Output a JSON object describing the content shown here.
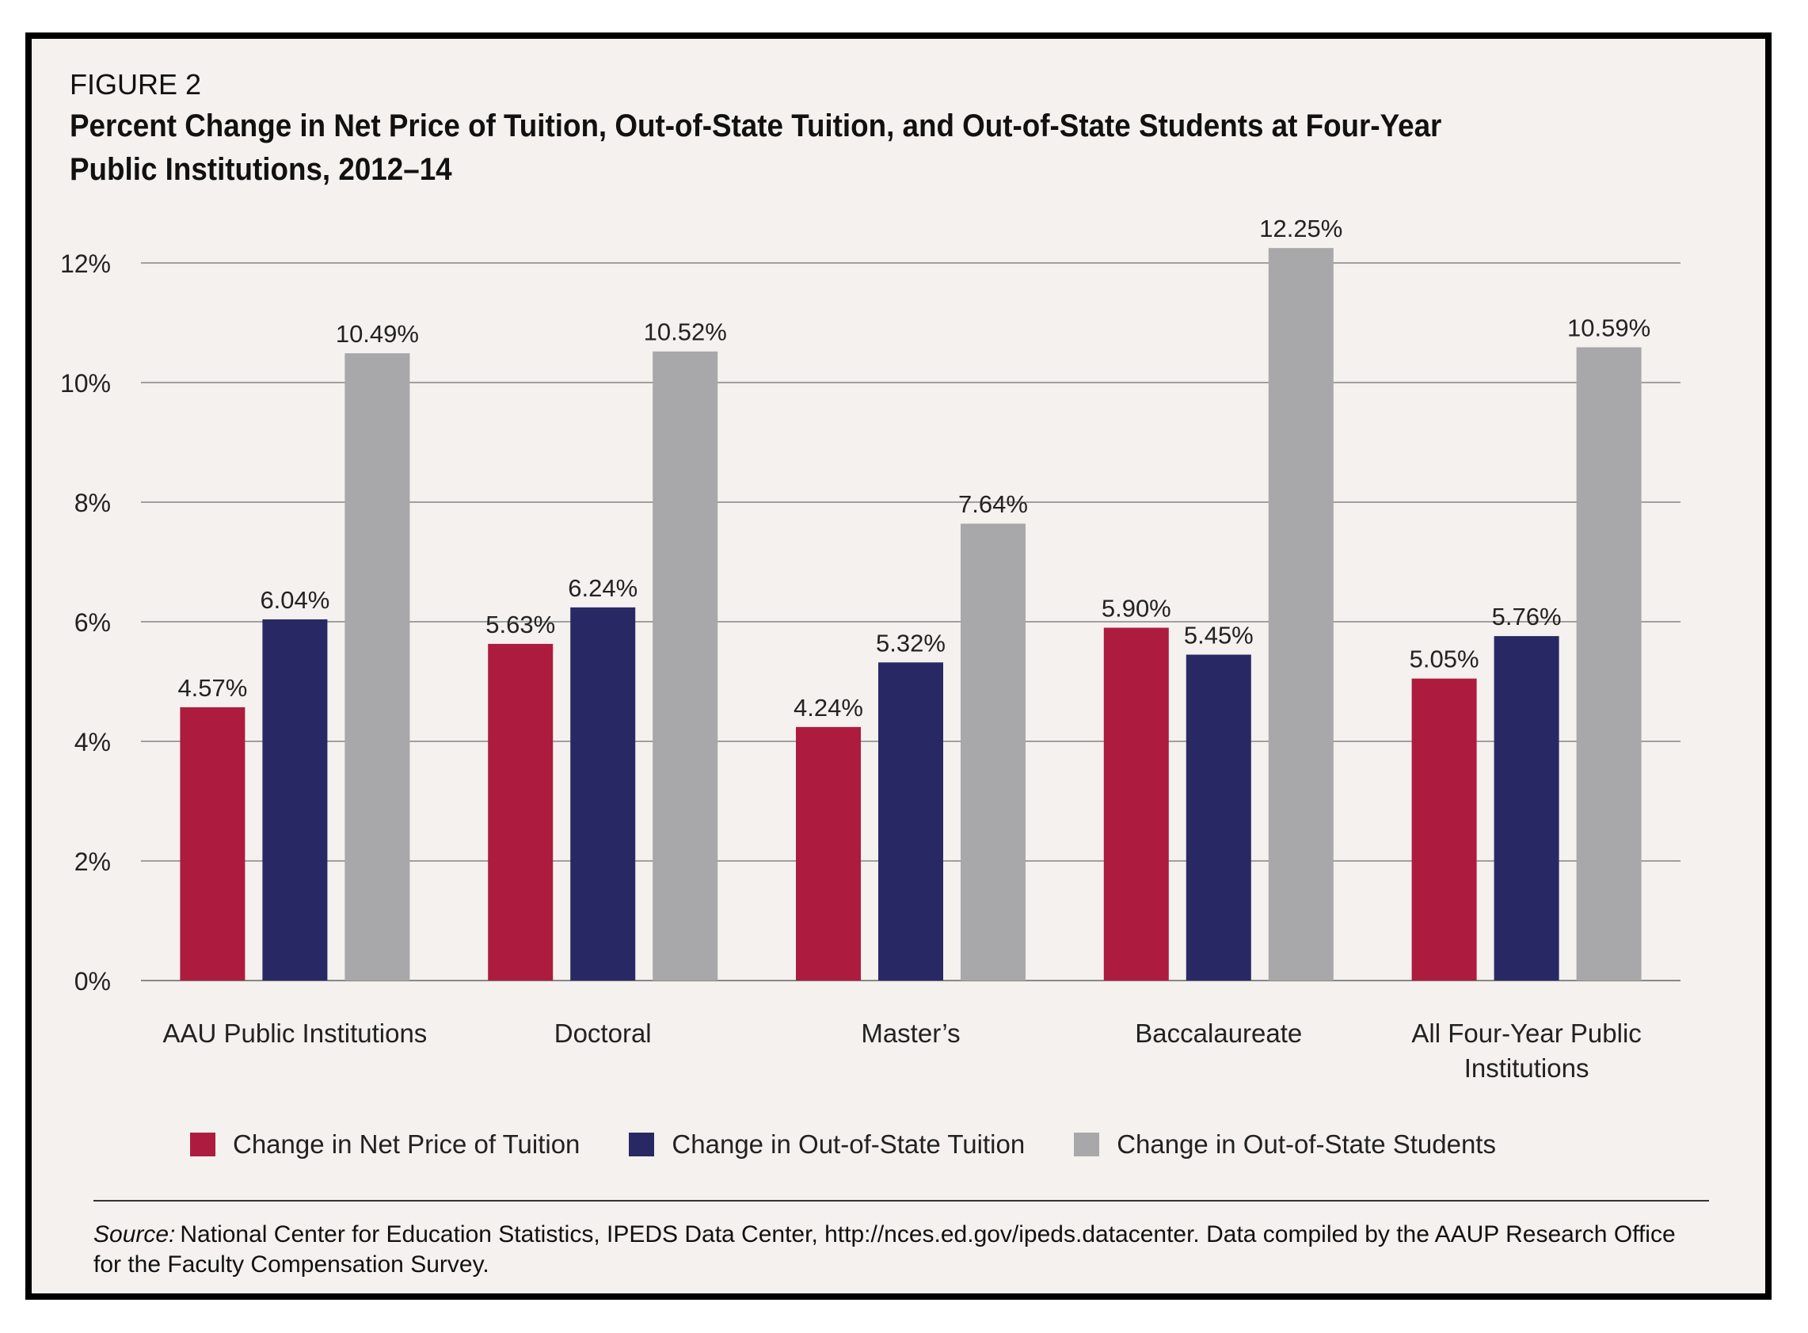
{
  "figure_label": "FIGURE 2",
  "title": "Percent Change in Net Price of Tuition, Out-of-State Tuition, and Out-of-State Students at Four-Year Public Institutions, 2012–14",
  "source": {
    "lead": "Source:",
    "text": "National Center for Education Statistics, IPEDS Data Center, http://nces.ed.gov/ipeds.datacenter. Data compiled by the AAUP Research Office for the Faculty Compensation Survey."
  },
  "chart_data": {
    "type": "bar",
    "title": "Percent Change in Net Price of Tuition, Out-of-State Tuition, and Out-of-State Students at Four-Year Public Institutions, 2012–14",
    "xlabel": "",
    "ylabel": "",
    "ylim": [
      0,
      12
    ],
    "yticks": [
      0,
      2,
      4,
      6,
      8,
      10,
      12
    ],
    "ytick_labels": [
      "0%",
      "2%",
      "4%",
      "6%",
      "8%",
      "10%",
      "12%"
    ],
    "grid": true,
    "legend_position": "bottom",
    "categories": [
      [
        "AAU Public Institutions"
      ],
      [
        "Doctoral"
      ],
      [
        "Master’s"
      ],
      [
        "Baccalaureate"
      ],
      [
        "All Four-Year Public",
        "Institutions"
      ]
    ],
    "series": [
      {
        "name": "Change in Net Price of Tuition",
        "color": "#ad1c3e",
        "values": [
          4.57,
          5.63,
          4.24,
          5.9,
          5.05
        ],
        "labels": [
          "4.57%",
          "5.63%",
          "4.24%",
          "5.90%",
          "5.05%"
        ]
      },
      {
        "name": "Change in Out-of-State Tuition",
        "color": "#282964",
        "values": [
          6.04,
          6.24,
          5.32,
          5.45,
          5.76
        ],
        "labels": [
          "6.04%",
          "6.24%",
          "5.32%",
          "5.45%",
          "5.76%"
        ]
      },
      {
        "name": "Change in Out-of-State Students",
        "color": "#a8a8ab",
        "values": [
          10.49,
          10.52,
          7.64,
          12.25,
          10.59
        ],
        "labels": [
          "10.49%",
          "10.52%",
          "7.64%",
          "12.25%",
          "10.59%"
        ]
      }
    ]
  }
}
